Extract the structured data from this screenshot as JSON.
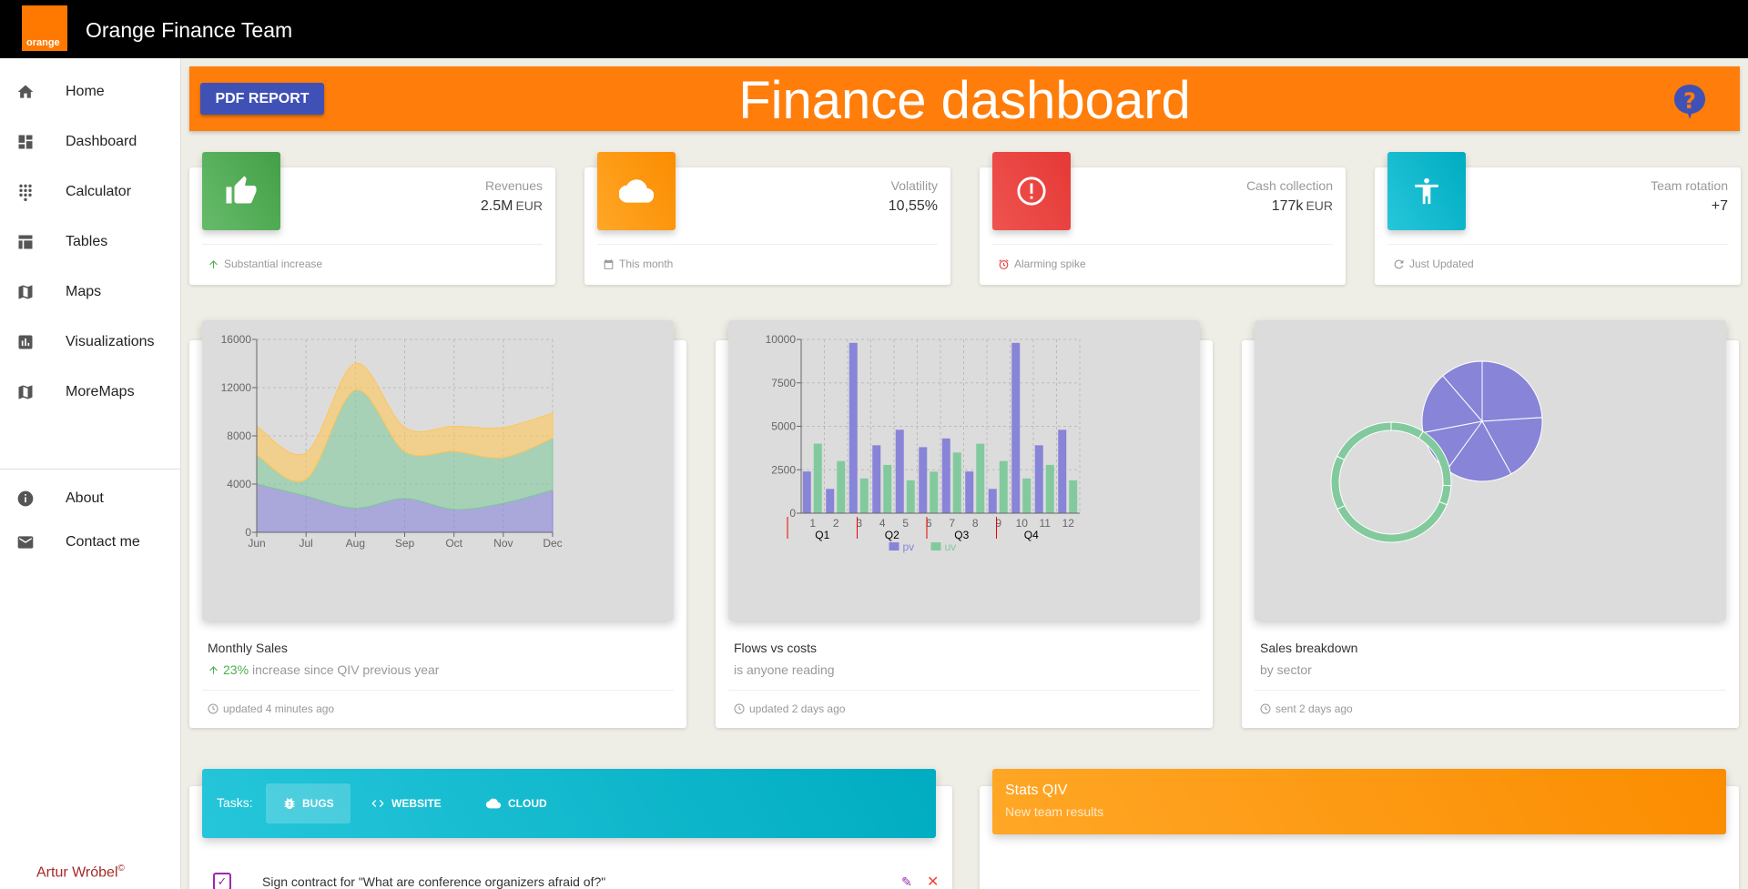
{
  "app": {
    "title": "Orange Finance Team",
    "logo_text": "orange"
  },
  "sidebar": {
    "items": [
      {
        "label": "Home",
        "icon": "home-icon"
      },
      {
        "label": "Dashboard",
        "icon": "dashboard-icon"
      },
      {
        "label": "Calculator",
        "icon": "dialpad-icon"
      },
      {
        "label": "Tables",
        "icon": "table-icon"
      },
      {
        "label": "Maps",
        "icon": "map-icon"
      },
      {
        "label": "Visualizations",
        "icon": "chart-icon"
      },
      {
        "label": "MoreMaps",
        "icon": "map-icon"
      }
    ],
    "bottom_items": [
      {
        "label": "About",
        "icon": "info-icon"
      },
      {
        "label": "Contact me",
        "icon": "mail-icon"
      }
    ],
    "author": "Artur Wróbel",
    "author_mark": "©"
  },
  "header": {
    "pdf_button": "PDF REPORT",
    "title": "Finance dashboard"
  },
  "stats": [
    {
      "label": "Revenues",
      "value": "2.5M",
      "unit": "EUR",
      "footer": "Substantial increase",
      "color": "#4caf50",
      "icon": "thumb-up-icon",
      "footer_icon": "arrow-up-icon"
    },
    {
      "label": "Volatility",
      "value": "10,55%",
      "unit": "",
      "footer": "This month",
      "color": "#ff9800",
      "icon": "cloud-icon",
      "footer_icon": "calendar-icon"
    },
    {
      "label": "Cash collection",
      "value": "177k",
      "unit": "EUR",
      "footer": "Alarming spike",
      "color": "#e53935",
      "icon": "alert-icon",
      "footer_icon": "alarm-icon"
    },
    {
      "label": "Team rotation",
      "value": "+7",
      "unit": "",
      "footer": "Just Updated",
      "color": "#00acc1",
      "icon": "accessibility-icon",
      "footer_icon": "update-icon"
    }
  ],
  "charts": [
    {
      "title": "Monthly Sales",
      "subtitle_pct": "23%",
      "subtitle": "increase since QIV previous year",
      "footer": "updated 4 minutes ago"
    },
    {
      "title": "Flows vs costs",
      "subtitle_pct": "",
      "subtitle": "is anyone reading",
      "footer": "updated 2 days ago"
    },
    {
      "title": "Sales breakdown",
      "subtitle_pct": "",
      "subtitle": "by sector",
      "footer": "sent 2 days ago"
    }
  ],
  "tasks": {
    "label": "Tasks:",
    "tabs": [
      {
        "label": "BUGS",
        "icon": "bug-icon",
        "active": true
      },
      {
        "label": "WEBSITE",
        "icon": "code-icon",
        "active": false
      },
      {
        "label": "CLOUD",
        "icon": "cloud-icon",
        "active": false
      }
    ],
    "first_task": "Sign contract for \"What are conference organizers afraid of?\""
  },
  "stats_q": {
    "title": "Stats QIV",
    "subtitle": "New team results"
  },
  "chart_data": [
    {
      "type": "area",
      "stacked": true,
      "x": [
        "Jun",
        "Jul",
        "Aug",
        "Sep",
        "Oct",
        "Nov",
        "Dec"
      ],
      "ylim": [
        0,
        16000
      ],
      "yticks": [
        0,
        4000,
        8000,
        12000,
        16000
      ],
      "series": [
        {
          "values": [
            4000,
            3000,
            2000,
            2800,
            1900,
            2400,
            3500
          ],
          "color": "#8884d8"
        },
        {
          "values": [
            2400,
            1400,
            9800,
            3900,
            4800,
            3800,
            4300
          ],
          "color": "#82ca9d"
        },
        {
          "values": [
            2400,
            2200,
            2200,
            2000,
            2100,
            2500,
            2100
          ],
          "color": "#ffc658"
        }
      ],
      "grid": true
    },
    {
      "type": "bar",
      "categories": [
        "1",
        "2",
        "3",
        "4",
        "5",
        "6",
        "7",
        "8",
        "9",
        "10",
        "11",
        "12"
      ],
      "quarters": [
        "Q1",
        "Q2",
        "Q3",
        "Q4"
      ],
      "ylim": [
        0,
        10000
      ],
      "yticks": [
        0,
        2500,
        5000,
        7500,
        10000
      ],
      "series": [
        {
          "name": "pv",
          "values": [
            2400,
            1398,
            9800,
            3908,
            4800,
            3800,
            4300,
            2400,
            1398,
            9800,
            3908,
            4800
          ],
          "color": "#8884d8"
        },
        {
          "name": "uv",
          "values": [
            4000,
            3000,
            2000,
            2780,
            1890,
            2390,
            3490,
            4000,
            3000,
            2000,
            2780,
            1890
          ],
          "color": "#82ca9d"
        }
      ],
      "legend": "bottom",
      "grid": true
    },
    {
      "type": "pie",
      "series": [
        {
          "type": "pie",
          "values": [
            400,
            300,
            300,
            200,
            278,
            189
          ],
          "color": "#8884d8"
        },
        {
          "type": "donut",
          "values": [
            2400,
            4567,
            1398,
            9800,
            3908,
            4800
          ],
          "color": "#82ca9d"
        }
      ]
    }
  ]
}
